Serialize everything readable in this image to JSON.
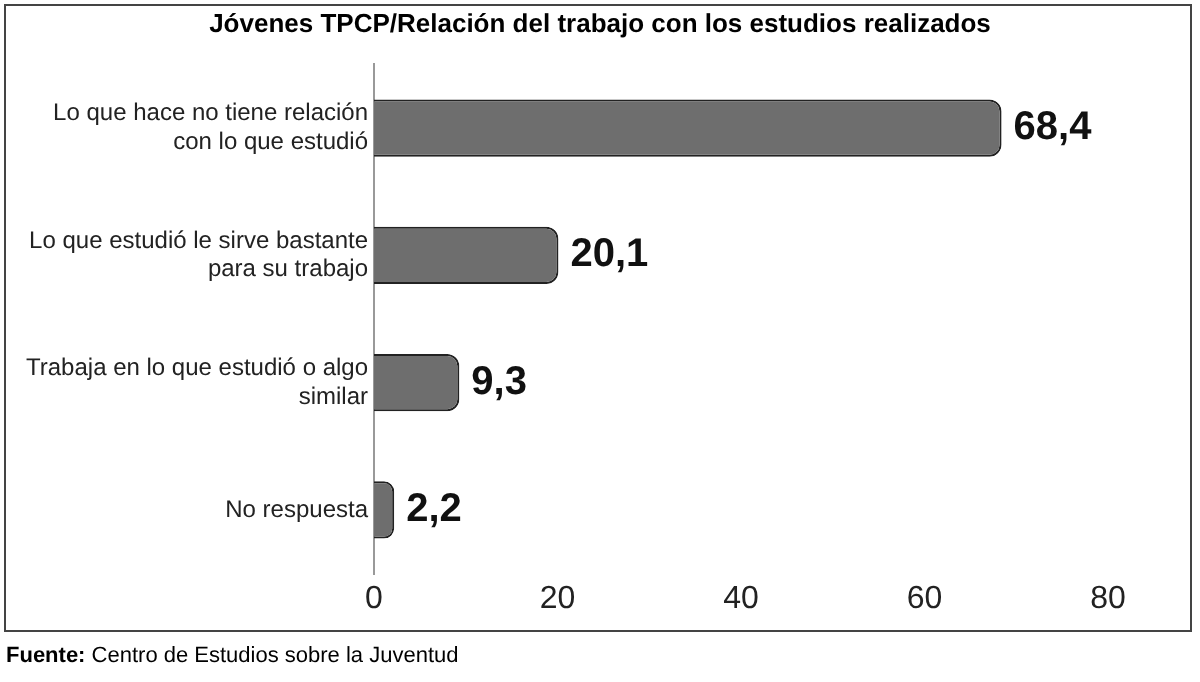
{
  "chart_data": {
    "type": "bar",
    "orientation": "horizontal",
    "title": "Jóvenes TPCP/Relación del trabajo con los estudios realizados",
    "categories": [
      "Lo que hace no tiene relación con lo que estudió",
      "Lo que estudió le sirve bastante para su trabajo",
      "Trabaja en lo que estudió o algo similar",
      "No respuesta"
    ],
    "values": [
      68.4,
      20.1,
      9.3,
      2.2
    ],
    "value_labels": [
      "68,4",
      "20,1",
      "9,3",
      "2,2"
    ],
    "color": "#6e6e6e",
    "xlim": [
      0,
      80
    ],
    "xticks": [
      0,
      20,
      40,
      60,
      80
    ],
    "grid": false,
    "legend": false,
    "annotations": [
      "Fuente: Centro de Estudios sobre la Juventud"
    ]
  }
}
